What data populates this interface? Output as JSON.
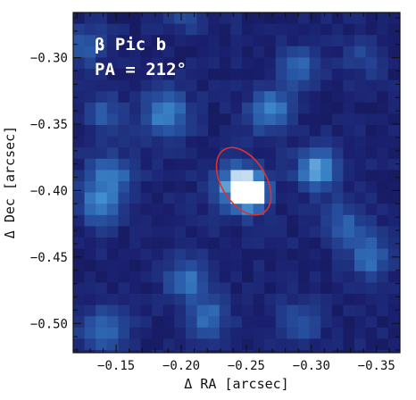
{
  "chart_data": {
    "type": "heatmap",
    "title": "",
    "annotations": [
      "β Pic b",
      "PA = 212°"
    ],
    "xlabel": "Δ RA [arcsec]",
    "ylabel": "Δ Dec [arcsec]",
    "xlim": [
      -0.117,
      -0.368
    ],
    "ylim": [
      -0.522,
      -0.266
    ],
    "x_ticks": [
      -0.15,
      -0.2,
      -0.25,
      -0.3,
      -0.35
    ],
    "x_tick_labels": [
      "−0.15",
      "−0.20",
      "−0.25",
      "−0.30",
      "−0.35"
    ],
    "y_ticks": [
      -0.3,
      -0.35,
      -0.4,
      -0.45,
      -0.5
    ],
    "y_tick_labels": [
      "−0.30",
      "−0.35",
      "−0.40",
      "−0.45",
      "−0.50"
    ],
    "colormap": [
      "#0a0a28",
      "#1a1f6e",
      "#2a5aa8",
      "#3f8fd0",
      "#ffffff"
    ],
    "sources": [
      {
        "x": -0.253,
        "y": -0.402,
        "amp": 1.0,
        "sigma": 0.009
      },
      {
        "x": -0.242,
        "y": -0.396,
        "amp": 0.55,
        "sigma": 0.012
      },
      {
        "x": -0.305,
        "y": -0.384,
        "amp": 0.62,
        "sigma": 0.011
      },
      {
        "x": -0.188,
        "y": -0.342,
        "amp": 0.5,
        "sigma": 0.012
      },
      {
        "x": -0.268,
        "y": -0.34,
        "amp": 0.48,
        "sigma": 0.011
      },
      {
        "x": -0.145,
        "y": -0.39,
        "amp": 0.45,
        "sigma": 0.012
      },
      {
        "x": -0.136,
        "y": -0.413,
        "amp": 0.42,
        "sigma": 0.01
      },
      {
        "x": -0.14,
        "y": -0.342,
        "amp": 0.3,
        "sigma": 0.01
      },
      {
        "x": -0.128,
        "y": -0.292,
        "amp": 0.3,
        "sigma": 0.01
      },
      {
        "x": -0.29,
        "y": -0.308,
        "amp": 0.35,
        "sigma": 0.01
      },
      {
        "x": -0.325,
        "y": -0.425,
        "amp": 0.3,
        "sigma": 0.011
      },
      {
        "x": -0.345,
        "y": -0.45,
        "amp": 0.38,
        "sigma": 0.011
      },
      {
        "x": -0.205,
        "y": -0.467,
        "amp": 0.42,
        "sigma": 0.011
      },
      {
        "x": -0.22,
        "y": -0.495,
        "amp": 0.35,
        "sigma": 0.011
      },
      {
        "x": -0.14,
        "y": -0.505,
        "amp": 0.4,
        "sigma": 0.012
      },
      {
        "x": -0.29,
        "y": -0.5,
        "amp": 0.28,
        "sigma": 0.011
      },
      {
        "x": -0.205,
        "y": -0.268,
        "amp": 0.22,
        "sigma": 0.01
      },
      {
        "x": -0.34,
        "y": -0.3,
        "amp": 0.18,
        "sigma": 0.01
      }
    ],
    "ellipse": {
      "cx": -0.248,
      "cy": -0.393,
      "rx": 0.017,
      "ry": 0.028,
      "rotation_deg": -32,
      "color": "#e03030"
    }
  }
}
